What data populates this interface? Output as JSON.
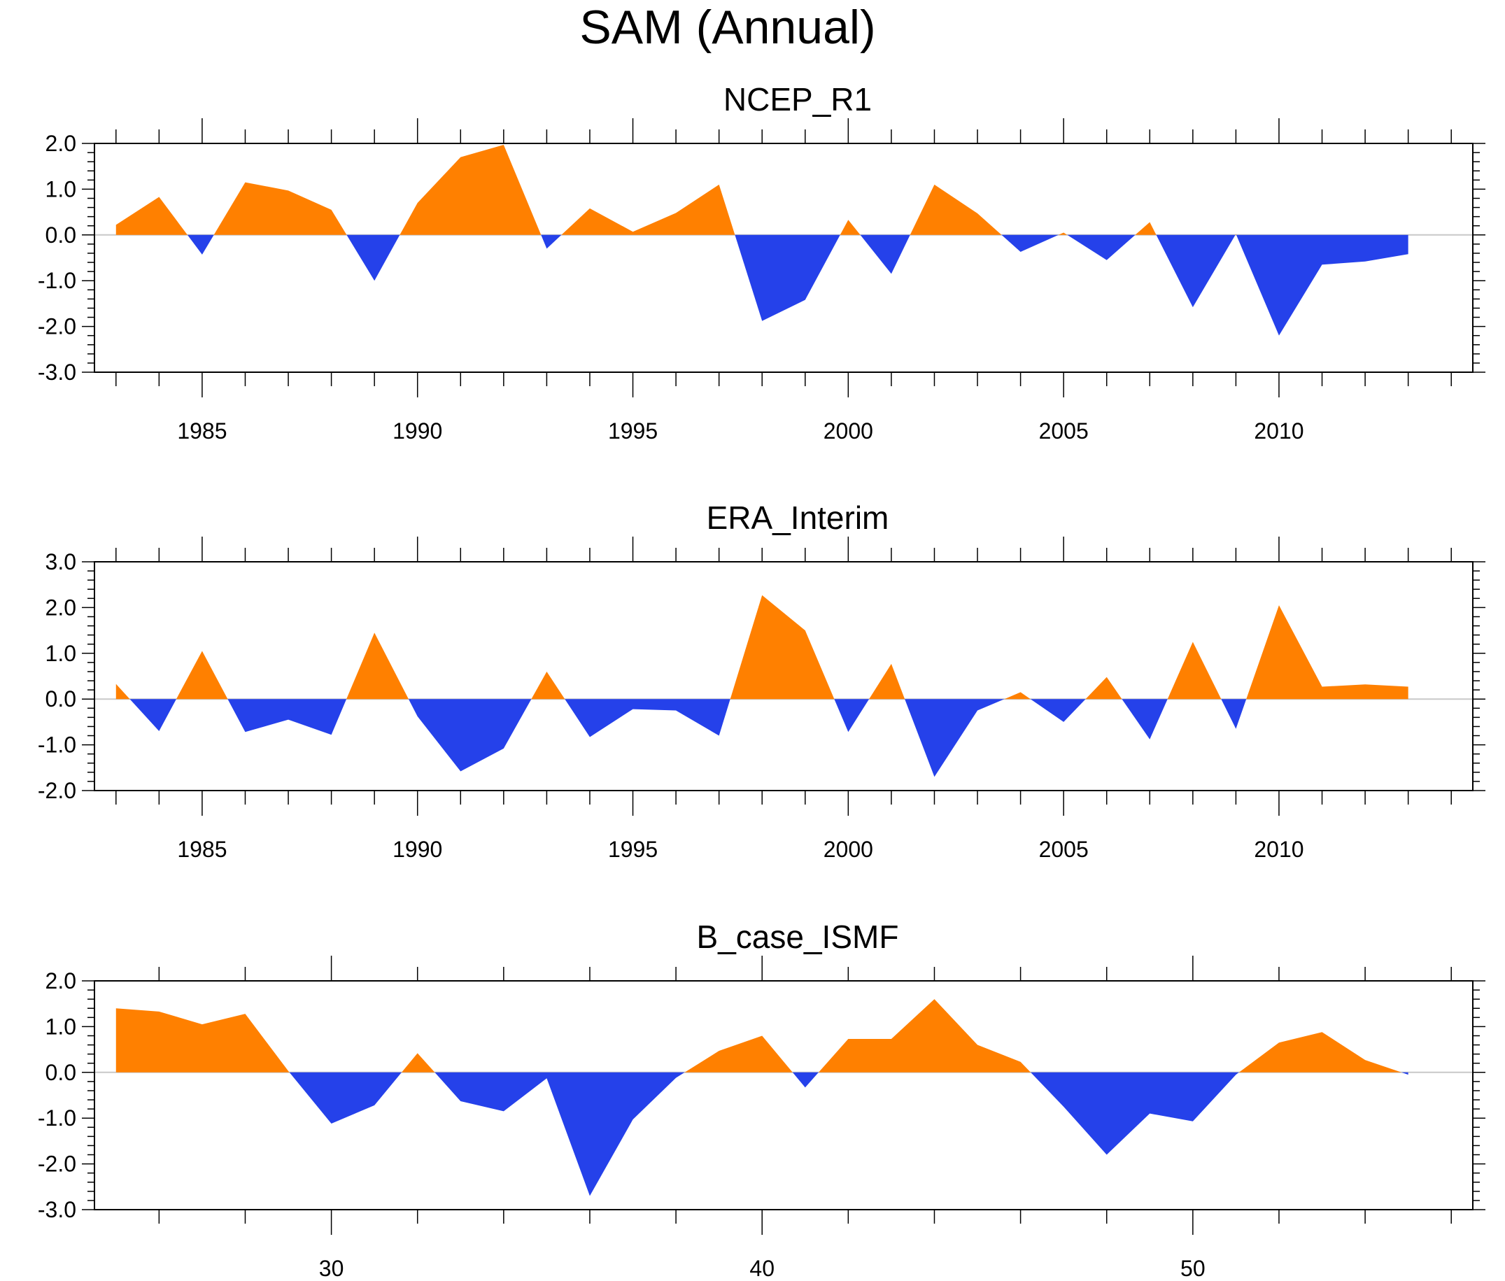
{
  "title": "SAM (Annual)",
  "colors": {
    "positive": "#FF8000",
    "negative": "#2541EA",
    "axis": "#000000",
    "zero_line": "#C8C8C8"
  },
  "chart_data": [
    {
      "type": "area",
      "title": "NCEP_R1",
      "xlim": [
        1982.5,
        2014.5
      ],
      "ylim": [
        -3,
        2
      ],
      "yticks": [
        2,
        1,
        0,
        -1,
        -2,
        -3
      ],
      "ytick_labels": [
        "2.0",
        "1.0",
        "0.0",
        "-1.0",
        "-2.0",
        "-3.0"
      ],
      "xticks": [
        1985,
        1990,
        1995,
        2000,
        2005,
        2010
      ],
      "xtick_labels": [
        "1985",
        "1990",
        "1995",
        "2000",
        "2005",
        "2010"
      ],
      "x": [
        1983,
        1984,
        1985,
        1986,
        1987,
        1988,
        1989,
        1990,
        1991,
        1992,
        1993,
        1994,
        1995,
        1996,
        1997,
        1998,
        1999,
        2000,
        2001,
        2002,
        2003,
        2004,
        2005,
        2006,
        2007,
        2008,
        2009,
        2010,
        2011,
        2012,
        2013
      ],
      "values": [
        0.22,
        0.83,
        -0.43,
        1.15,
        0.97,
        0.55,
        -1.0,
        0.7,
        1.7,
        1.97,
        -0.3,
        0.58,
        0.07,
        0.48,
        1.1,
        -1.88,
        -1.42,
        0.33,
        -0.85,
        1.1,
        0.47,
        -0.37,
        0.05,
        -0.55,
        0.28,
        -1.58,
        0.02,
        -2.2,
        -0.65,
        -0.58,
        -0.42
      ]
    },
    {
      "type": "area",
      "title": "ERA_Interim",
      "xlim": [
        1982.5,
        2014.5
      ],
      "ylim": [
        -2,
        3
      ],
      "yticks": [
        3,
        2,
        1,
        0,
        -1,
        -2
      ],
      "ytick_labels": [
        "3.0",
        "2.0",
        "1.0",
        "0.0",
        "-1.0",
        "-2.0"
      ],
      "xticks": [
        1985,
        1990,
        1995,
        2000,
        2005,
        2010
      ],
      "xtick_labels": [
        "1985",
        "1990",
        "1995",
        "2000",
        "2005",
        "2010"
      ],
      "x": [
        1983,
        1984,
        1985,
        1986,
        1987,
        1988,
        1989,
        1990,
        1991,
        1992,
        1993,
        1994,
        1995,
        1996,
        1997,
        1998,
        1999,
        2000,
        2001,
        2002,
        2003,
        2004,
        2005,
        2006,
        2007,
        2008,
        2009,
        2010,
        2011,
        2012,
        2013
      ],
      "values": [
        0.33,
        -0.7,
        1.05,
        -0.72,
        -0.45,
        -0.78,
        1.45,
        -0.38,
        -1.58,
        -1.08,
        0.6,
        -0.83,
        -0.22,
        -0.25,
        -0.8,
        2.27,
        1.5,
        -0.72,
        0.77,
        -1.7,
        -0.25,
        0.15,
        -0.5,
        0.48,
        -0.88,
        1.25,
        -0.65,
        2.05,
        0.27,
        0.32,
        0.27
      ]
    },
    {
      "type": "area",
      "title": "B_case_ISMF",
      "xlim": [
        24.5,
        56.5
      ],
      "ylim": [
        -3,
        2
      ],
      "yticks": [
        2,
        1,
        0,
        -1,
        -2,
        -3
      ],
      "ytick_labels": [
        "2.0",
        "1.0",
        "0.0",
        "-1.0",
        "-2.0",
        "-3.0"
      ],
      "xticks": [
        30,
        40,
        50
      ],
      "xtick_labels": [
        "30",
        "40",
        "50"
      ],
      "x": [
        25,
        26,
        27,
        28,
        29,
        30,
        31,
        32,
        33,
        34,
        35,
        36,
        37,
        38,
        39,
        40,
        41,
        42,
        43,
        44,
        45,
        46,
        47,
        48,
        49,
        50,
        51,
        52,
        53,
        54,
        55
      ],
      "values": [
        1.4,
        1.33,
        1.05,
        1.28,
        0.03,
        -1.12,
        -0.72,
        0.42,
        -0.63,
        -0.85,
        -0.13,
        -2.7,
        -1.03,
        -0.12,
        0.47,
        0.8,
        -0.33,
        0.73,
        0.73,
        1.6,
        0.6,
        0.23,
        -0.75,
        -1.8,
        -0.9,
        -1.07,
        -0.05,
        0.65,
        0.88,
        0.27,
        -0.05
      ]
    }
  ]
}
